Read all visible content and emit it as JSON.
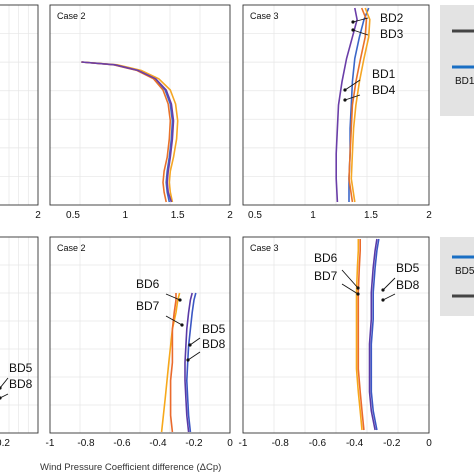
{
  "colors": {
    "BD2": "#f5a623",
    "BD3": "#e8722a",
    "BD1": "#3b66c8",
    "BD4": "#6a3ea8",
    "BD6": "#f7a81b",
    "BD7": "#ea6a2c",
    "BD5": "#3b57c4",
    "BD8": "#5a3aa6",
    "legend_blue": "#1a6fc4",
    "legend_dark": "#444444"
  },
  "chart_data": [
    {
      "type": "line",
      "panel": "top-left-partial",
      "title": "",
      "xlim": [
        0.5,
        2
      ],
      "x_tick_labels": [
        "2"
      ],
      "series": []
    },
    {
      "type": "line",
      "panel": "top-middle",
      "title": "Case 2",
      "xlim": [
        0.5,
        2
      ],
      "x_tick_labels": [
        "0.5",
        "1",
        "1.5",
        "2"
      ],
      "series": [
        {
          "key": "BD1",
          "x": [
            0.58,
            0.9,
            1.12,
            1.28,
            1.38,
            1.43,
            1.45,
            1.44,
            1.42,
            1.4,
            1.39,
            1.4,
            1.42
          ],
          "y": [
            0.0,
            0.02,
            0.06,
            0.12,
            0.2,
            0.3,
            0.42,
            0.55,
            0.68,
            0.78,
            0.86,
            0.93,
            1.0
          ]
        },
        {
          "key": "BD2",
          "x": [
            0.58,
            0.92,
            1.15,
            1.32,
            1.43,
            1.48,
            1.5,
            1.49,
            1.46,
            1.43,
            1.42,
            1.43,
            1.45
          ],
          "y": [
            0.0,
            0.02,
            0.06,
            0.12,
            0.2,
            0.3,
            0.42,
            0.55,
            0.68,
            0.78,
            0.86,
            0.93,
            1.0
          ]
        },
        {
          "key": "BD3",
          "x": [
            0.58,
            0.89,
            1.11,
            1.27,
            1.36,
            1.41,
            1.43,
            1.42,
            1.4,
            1.37,
            1.36,
            1.37,
            1.39
          ],
          "y": [
            0.0,
            0.02,
            0.06,
            0.12,
            0.2,
            0.3,
            0.42,
            0.55,
            0.68,
            0.78,
            0.86,
            0.93,
            1.0
          ]
        },
        {
          "key": "BD4",
          "x": [
            0.58,
            0.9,
            1.12,
            1.29,
            1.39,
            1.44,
            1.46,
            1.45,
            1.43,
            1.41,
            1.4,
            1.41,
            1.44
          ],
          "y": [
            0.0,
            0.02,
            0.06,
            0.12,
            0.2,
            0.3,
            0.42,
            0.55,
            0.68,
            0.78,
            0.86,
            0.93,
            1.0
          ]
        }
      ]
    },
    {
      "type": "line",
      "panel": "top-right",
      "title": "Case 3",
      "xlim": [
        0.5,
        2
      ],
      "x_tick_labels": [
        "0.5",
        "1",
        "1.5",
        "2"
      ],
      "labels": [
        "BD2",
        "BD3",
        "BD1",
        "BD4"
      ],
      "series": [
        {
          "key": "BD1",
          "x": [
            1.48,
            1.44,
            1.4,
            1.36,
            1.34,
            1.33,
            1.32,
            1.32,
            1.31,
            1.31
          ],
          "y": [
            0.0,
            0.06,
            0.15,
            0.26,
            0.38,
            0.5,
            0.62,
            0.75,
            0.88,
            1.0
          ]
        },
        {
          "key": "BD2",
          "x": [
            1.45,
            1.49,
            1.48,
            1.44,
            1.4,
            1.37,
            1.35,
            1.34,
            1.33,
            1.36
          ],
          "y": [
            0.0,
            0.06,
            0.15,
            0.26,
            0.38,
            0.5,
            0.62,
            0.75,
            0.88,
            1.0
          ]
        },
        {
          "key": "BD3",
          "x": [
            1.42,
            1.46,
            1.45,
            1.41,
            1.37,
            1.34,
            1.33,
            1.32,
            1.31,
            1.34
          ],
          "y": [
            0.0,
            0.06,
            0.15,
            0.26,
            0.38,
            0.5,
            0.62,
            0.75,
            0.88,
            1.0
          ]
        },
        {
          "key": "BD4",
          "x": [
            1.36,
            1.38,
            1.34,
            1.29,
            1.25,
            1.22,
            1.21,
            1.2,
            1.2,
            1.21
          ],
          "y": [
            0.0,
            0.06,
            0.15,
            0.26,
            0.38,
            0.5,
            0.62,
            0.75,
            0.88,
            1.0
          ]
        }
      ]
    },
    {
      "type": "line",
      "panel": "bottom-left-partial",
      "title": "",
      "xlim": [
        -1,
        0
      ],
      "x_tick_labels": [
        "0.2"
      ],
      "labels": [
        "BD5",
        "BD8"
      ],
      "series": []
    },
    {
      "type": "line",
      "panel": "bottom-middle",
      "title": "Case 2",
      "xlim": [
        -1,
        0
      ],
      "x_tick_labels": [
        "-1",
        "-0.8",
        "-0.6",
        "-0.4",
        "-0.2",
        "0"
      ],
      "labels": [
        "BD6",
        "BD7",
        "BD5",
        "BD8"
      ],
      "series": [
        {
          "key": "BD5",
          "x": [
            -0.19,
            -0.2,
            -0.21,
            -0.22,
            -0.23,
            -0.235,
            -0.24,
            -0.235,
            -0.23,
            -0.22
          ],
          "y": [
            0.0,
            0.05,
            0.14,
            0.26,
            0.38,
            0.5,
            0.63,
            0.76,
            0.88,
            1.0
          ]
        },
        {
          "key": "BD6",
          "x": [
            -0.28,
            -0.29,
            -0.3,
            -0.32,
            -0.33,
            -0.34,
            -0.35,
            -0.36,
            -0.37,
            -0.38
          ],
          "y": [
            0.0,
            0.05,
            0.14,
            0.26,
            0.38,
            0.5,
            0.63,
            0.76,
            0.88,
            1.0
          ]
        },
        {
          "key": "BD7",
          "x": [
            -0.3,
            -0.3,
            -0.31,
            -0.32,
            -0.32,
            -0.32,
            -0.33,
            -0.33,
            -0.33,
            -0.32
          ],
          "y": [
            0.0,
            0.05,
            0.14,
            0.26,
            0.38,
            0.5,
            0.63,
            0.76,
            0.88,
            1.0
          ]
        },
        {
          "key": "BD8",
          "x": [
            -0.21,
            -0.22,
            -0.23,
            -0.24,
            -0.245,
            -0.25,
            -0.25,
            -0.245,
            -0.24,
            -0.23
          ],
          "y": [
            0.0,
            0.05,
            0.14,
            0.26,
            0.38,
            0.5,
            0.63,
            0.76,
            0.88,
            1.0
          ]
        }
      ]
    },
    {
      "type": "line",
      "panel": "bottom-right",
      "title": "Case 3",
      "xlim": [
        -1,
        0
      ],
      "x_tick_labels": [
        "-1",
        "-0.8",
        "-0.6",
        "-0.4",
        "-0.2",
        "0"
      ],
      "labels": [
        "BD6",
        "BD7",
        "BD5",
        "BD8"
      ],
      "series": [
        {
          "key": "BD5",
          "x": [
            -0.27,
            -0.28,
            -0.29,
            -0.3,
            -0.3,
            -0.31,
            -0.31,
            -0.31,
            -0.3,
            -0.28
          ],
          "y": [
            0.0,
            0.06,
            0.15,
            0.28,
            0.42,
            0.55,
            0.68,
            0.8,
            0.9,
            1.0
          ]
        },
        {
          "key": "BD6",
          "x": [
            -0.38,
            -0.38,
            -0.385,
            -0.39,
            -0.39,
            -0.39,
            -0.39,
            -0.38,
            -0.37,
            -0.36
          ],
          "y": [
            0.0,
            0.06,
            0.15,
            0.28,
            0.42,
            0.55,
            0.68,
            0.8,
            0.9,
            1.0
          ]
        },
        {
          "key": "BD7",
          "x": [
            -0.37,
            -0.37,
            -0.375,
            -0.38,
            -0.38,
            -0.38,
            -0.38,
            -0.37,
            -0.36,
            -0.35
          ],
          "y": [
            0.0,
            0.06,
            0.15,
            0.28,
            0.42,
            0.55,
            0.68,
            0.8,
            0.9,
            1.0
          ]
        },
        {
          "key": "BD8",
          "x": [
            -0.28,
            -0.29,
            -0.3,
            -0.31,
            -0.31,
            -0.32,
            -0.32,
            -0.32,
            -0.31,
            -0.29
          ],
          "y": [
            0.0,
            0.06,
            0.15,
            0.28,
            0.42,
            0.55,
            0.68,
            0.8,
            0.9,
            1.0
          ]
        }
      ]
    }
  ],
  "legend_top": {
    "labels": [
      "BD1"
    ]
  },
  "legend_bottom": {
    "labels": [
      "BD5"
    ]
  },
  "xlabel": "Wind Pressure Coefficient difference (ΔCp)"
}
